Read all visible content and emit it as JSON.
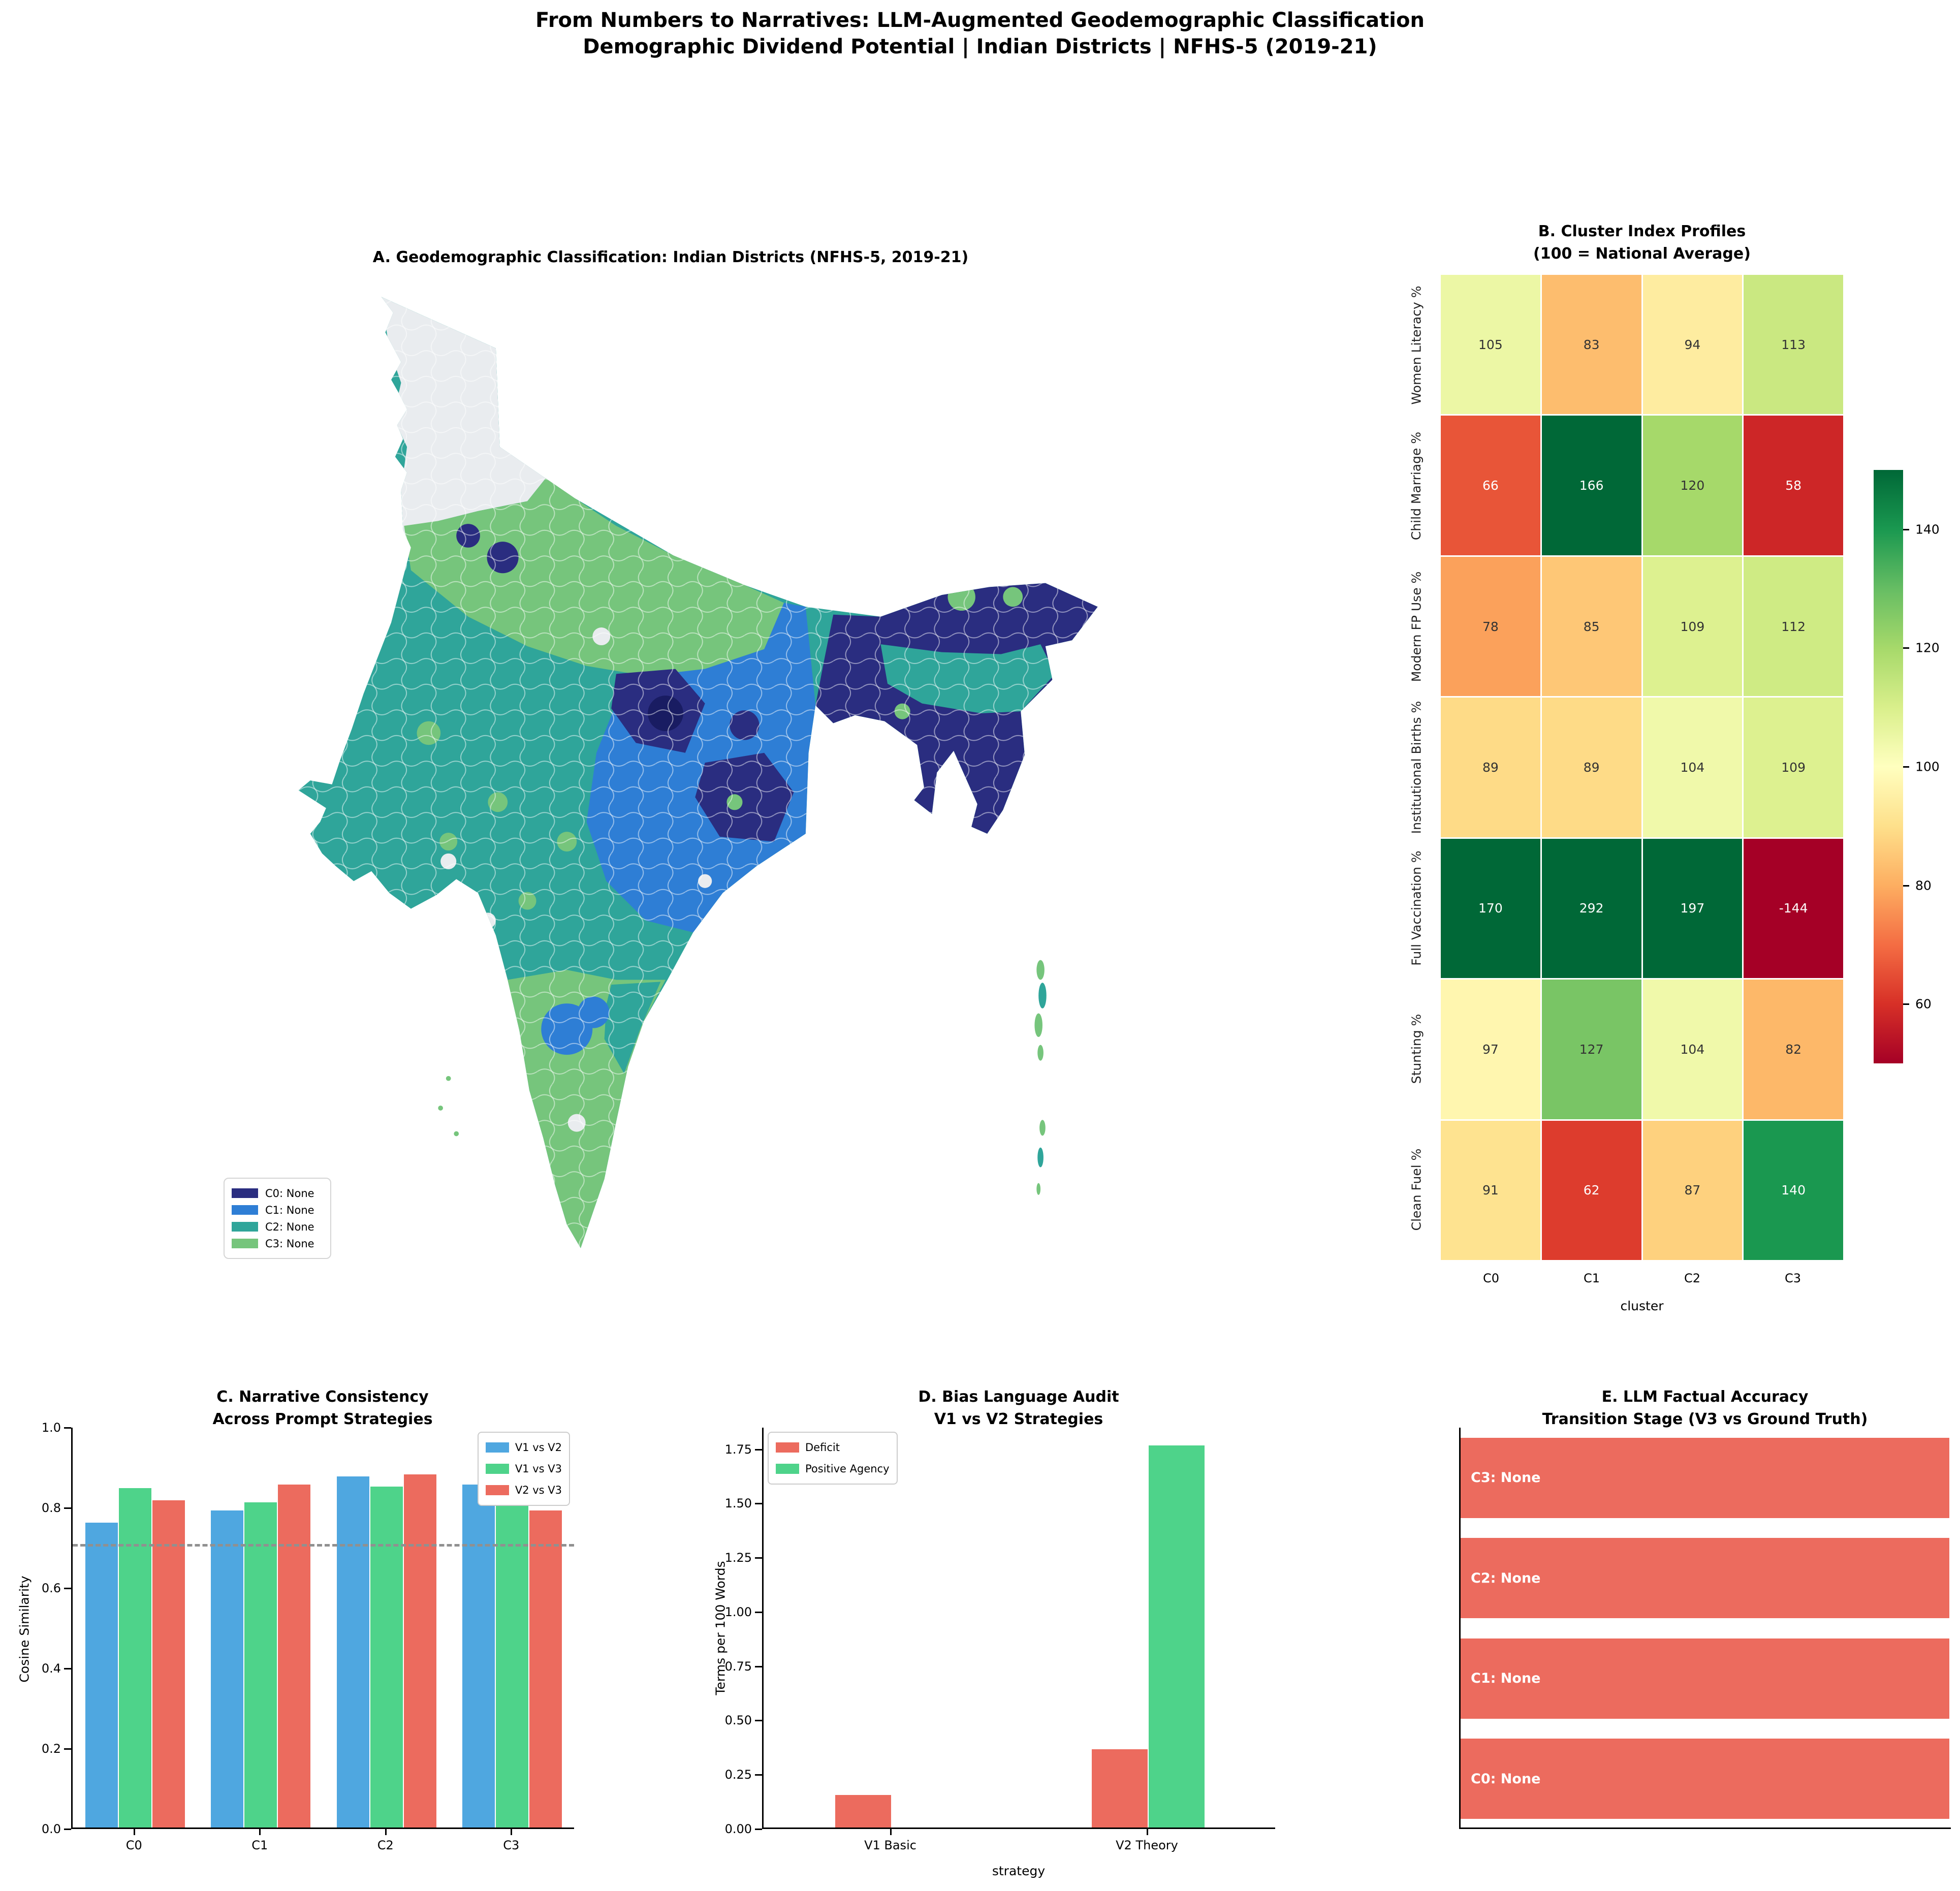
{
  "header": {
    "title_line1": "From Numbers to Narratives: LLM-Augmented Geodemographic Classification",
    "title_line2": "Demographic Dividend Potential | Indian Districts | NFHS-5 (2019-21)"
  },
  "colors": {
    "c0": "#2A2D80",
    "c0_dark": "#191C62",
    "c1": "#2E7ED5",
    "c2": "#2FA59A",
    "c3": "#76C57C",
    "missing": "#E9ECEF",
    "bar_blue": "#4FA7E0",
    "bar_green": "#4ED38A",
    "bar_red": "#EC6B5E",
    "threshold_gray": "#909090",
    "annot_dark": "#333333",
    "annot_light": "#FFFFFF"
  },
  "panel_a": {
    "title": "A. Geodemographic Classification: Indian Districts (NFHS-5, 2019-21)",
    "legend": [
      {
        "label": "C0: None",
        "cluster": "c0"
      },
      {
        "label": "C1: None",
        "cluster": "c1"
      },
      {
        "label": "C2: None",
        "cluster": "c2"
      },
      {
        "label": "C3: None",
        "cluster": "c3"
      }
    ]
  },
  "panel_b": {
    "title_line1": "B. Cluster Index Profiles",
    "title_line2": "(100 = National Average)",
    "xlabel": "cluster",
    "columns": [
      "C0",
      "C1",
      "C2",
      "C3"
    ],
    "rows": [
      "Women Literacy %",
      "Child Marriage %",
      "Modern FP Use %",
      "Institutional Births %",
      "Full Vaccination %",
      "Stunting %",
      "Clean Fuel %"
    ],
    "values": [
      [
        105,
        83,
        94,
        113
      ],
      [
        66,
        166,
        120,
        58
      ],
      [
        78,
        85,
        109,
        112
      ],
      [
        89,
        89,
        104,
        109
      ],
      [
        170,
        292,
        197,
        -144
      ],
      [
        97,
        127,
        104,
        82
      ],
      [
        91,
        62,
        87,
        140
      ]
    ],
    "colorscale_domain": [
      50,
      150
    ],
    "colorbar_ticks": [
      140,
      120,
      100,
      80,
      60
    ]
  },
  "panel_c": {
    "title_line1": "C. Narrative Consistency",
    "title_line2": "Across Prompt Strategies",
    "ylabel": "Cosine Similarity",
    "categories": [
      "C0",
      "C1",
      "C2",
      "C3"
    ],
    "series": [
      {
        "name": "V1 vs V2",
        "color_key": "bar_blue",
        "values": [
          0.76,
          0.79,
          0.875,
          0.855
        ]
      },
      {
        "name": "V1 vs V3",
        "color_key": "bar_green",
        "values": [
          0.845,
          0.81,
          0.85,
          0.85
        ]
      },
      {
        "name": "V2 vs V3",
        "color_key": "bar_red",
        "values": [
          0.815,
          0.855,
          0.88,
          0.79
        ]
      }
    ],
    "threshold": 0.7,
    "ylim": [
      0.0,
      1.0
    ],
    "yticks": [
      "0.0",
      "0.2",
      "0.4",
      "0.6",
      "0.8",
      "1.0"
    ]
  },
  "panel_d": {
    "title_line1": "D. Bias Language Audit",
    "title_line2": "V1 vs V2 Strategies",
    "ylabel": "Terms per 100 Words",
    "xlabel": "strategy",
    "categories": [
      "V1 Basic",
      "V2 Theory"
    ],
    "series": [
      {
        "name": "Deficit",
        "color_key": "bar_red",
        "values": [
          0.15,
          0.36
        ]
      },
      {
        "name": "Positive Agency",
        "color_key": "bar_green",
        "values": [
          0.0,
          1.76
        ]
      }
    ],
    "ylim": [
      0.0,
      1.85
    ],
    "yticks": [
      "0.00",
      "0.25",
      "0.50",
      "0.75",
      "1.00",
      "1.25",
      "1.50",
      "1.75"
    ]
  },
  "panel_e": {
    "title_line1": "E. LLM Factual Accuracy",
    "title_line2": "Transition Stage (V3 vs Ground Truth)",
    "bars": [
      {
        "label": "C3: None",
        "value": 1.0
      },
      {
        "label": "C2: None",
        "value": 1.0
      },
      {
        "label": "C1: None",
        "value": 1.0
      },
      {
        "label": "C0: None",
        "value": 1.0
      }
    ],
    "bar_color_key": "bar_red"
  },
  "chart_data": [
    {
      "type": "choropleth",
      "title": "A. Geodemographic Classification: Indian Districts (NFHS-5, 2019-21)",
      "region": "India districts (NFHS-5, 2019-21)",
      "legend_entries": [
        "C0: None",
        "C1: None",
        "C2: None",
        "C3: None"
      ],
      "cluster_colors": [
        "#2A2D80",
        "#2E7ED5",
        "#2FA59A",
        "#76C57C"
      ],
      "missing_color": "#E9ECEF"
    },
    {
      "type": "heatmap",
      "title": "B. Cluster Index Profiles (100 = National Average)",
      "xlabel": "cluster",
      "categories_x": [
        "C0",
        "C1",
        "C2",
        "C3"
      ],
      "categories_y": [
        "Women Literacy %",
        "Child Marriage %",
        "Modern FP Use %",
        "Institutional Births %",
        "Full Vaccination %",
        "Stunting %",
        "Clean Fuel %"
      ],
      "values": [
        [
          105,
          83,
          94,
          113
        ],
        [
          66,
          166,
          120,
          58
        ],
        [
          78,
          85,
          109,
          112
        ],
        [
          89,
          89,
          104,
          109
        ],
        [
          170,
          292,
          197,
          -144
        ],
        [
          97,
          127,
          104,
          82
        ],
        [
          91,
          62,
          87,
          140
        ]
      ],
      "colorscale": "RdYlGn",
      "colorscale_domain": [
        50,
        150
      ],
      "colorbar_ticks": [
        140,
        120,
        100,
        80,
        60
      ]
    },
    {
      "type": "bar",
      "title": "C. Narrative Consistency Across Prompt Strategies",
      "ylabel": "Cosine Similarity",
      "categories": [
        "C0",
        "C1",
        "C2",
        "C3"
      ],
      "series": [
        {
          "name": "V1 vs V2",
          "values": [
            0.76,
            0.79,
            0.875,
            0.855
          ]
        },
        {
          "name": "V1 vs V3",
          "values": [
            0.845,
            0.81,
            0.85,
            0.85
          ]
        },
        {
          "name": "V2 vs V3",
          "values": [
            0.815,
            0.855,
            0.88,
            0.79
          ]
        }
      ],
      "threshold_line": 0.7,
      "ylim": [
        0,
        1.0
      ],
      "legend_position": "upper right",
      "grid": false
    },
    {
      "type": "bar",
      "title": "D. Bias Language Audit V1 vs V2 Strategies",
      "xlabel": "strategy",
      "ylabel": "Terms per 100 Words",
      "categories": [
        "V1 Basic",
        "V2 Theory"
      ],
      "series": [
        {
          "name": "Deficit",
          "values": [
            0.15,
            0.36
          ]
        },
        {
          "name": "Positive Agency",
          "values": [
            0.0,
            1.76
          ]
        }
      ],
      "ylim": [
        0,
        1.85
      ],
      "legend_position": "upper left",
      "grid": false
    },
    {
      "type": "barh",
      "title": "E. LLM Factual Accuracy Transition Stage (V3 vs Ground Truth)",
      "categories": [
        "C3: None",
        "C2: None",
        "C1: None",
        "C0: None"
      ],
      "values": [
        1.0,
        1.0,
        1.0,
        1.0
      ],
      "xlim": [
        0,
        1.0
      ],
      "bar_color": "#EC6B5E"
    }
  ]
}
